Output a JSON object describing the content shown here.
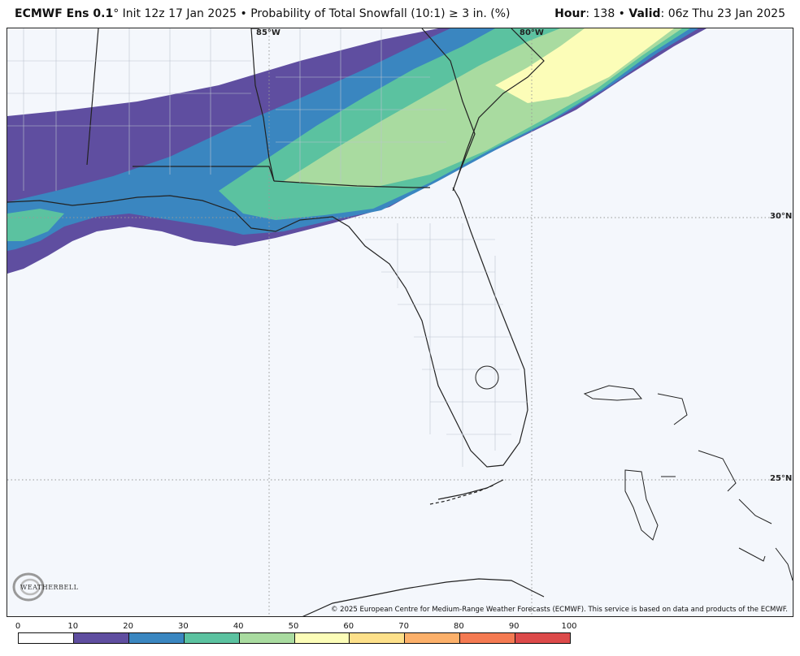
{
  "header": {
    "model": "ECMWF Ens 0.1",
    "degree": "°",
    "init": " Init 12z 17 Jan 2025",
    "bullet": " • ",
    "product": "Probability of Total Snowfall (10:1)  ≥  3 in. (%)",
    "hour_label": "Hour",
    "hour_value": ": 138",
    "valid_label": "Valid",
    "valid_value": ": 06z Thu 23 Jan 2025"
  },
  "map": {
    "lat_labels": [
      "30°N",
      "25°N"
    ],
    "lon_labels": [
      "85°W",
      "80°W"
    ],
    "credit": "© 2025 European Centre for Medium-Range Weather Forecasts (ECMWF). This service is based on data and products of the ECMWF.",
    "logo_text": "WEATHERBELL"
  },
  "colorbar": {
    "ticks": [
      "0",
      "10",
      "20",
      "30",
      "40",
      "50",
      "60",
      "70",
      "80",
      "90",
      "100"
    ],
    "colors": [
      "#ffffff",
      "#5f4ea0",
      "#3a86c0",
      "#5bc2a0",
      "#a9dba0",
      "#fcfdb8",
      "#fde08a",
      "#fcb06a",
      "#f47a52",
      "#dc4a4a",
      "#a00a3e"
    ]
  }
}
